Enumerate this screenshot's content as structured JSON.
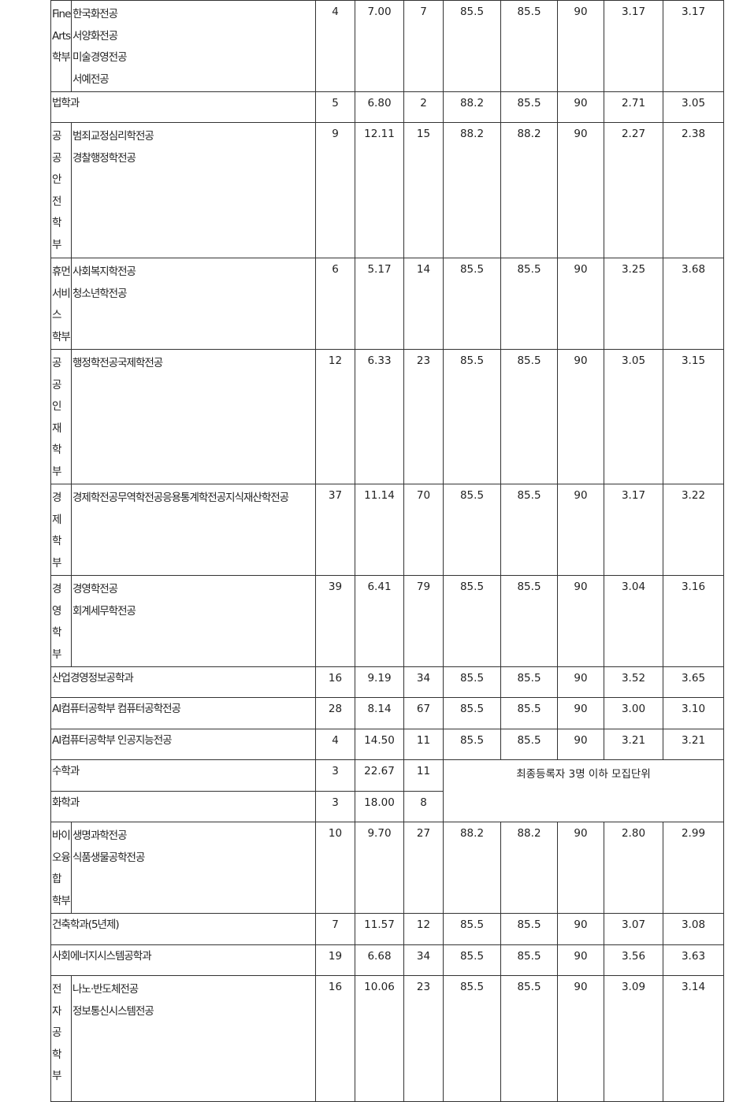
{
  "rows": [
    {
      "group": "Fine\nArts\n학부",
      "majors": "한국화전공\n서양화전공\n미술경영전공\n서예전공",
      "v": [
        "4",
        "7.00",
        "7",
        "85.5",
        "85.5",
        "90",
        "3.17",
        "3.17"
      ]
    },
    {
      "dept": "법학과",
      "v": [
        "5",
        "6.80",
        "2",
        "88.2",
        "85.5",
        "90",
        "2.71",
        "3.05"
      ]
    },
    {
      "group": "공\n공\n안\n전\n학\n부",
      "majors": "범죄교정심리학전공\n경찰행정학전공",
      "v": [
        "9",
        "12.11",
        "15",
        "88.2",
        "88.2",
        "90",
        "2.27",
        "2.38"
      ]
    },
    {
      "group": "휴먼\n서비\n스\n학부",
      "majors": "사회복지학전공\n청소년학전공",
      "v": [
        "6",
        "5.17",
        "14",
        "85.5",
        "85.5",
        "90",
        "3.25",
        "3.68"
      ]
    },
    {
      "group": "공\n공\n인\n재\n학\n부",
      "majors": "행정학전공국제학전공",
      "v": [
        "12",
        "6.33",
        "23",
        "85.5",
        "85.5",
        "90",
        "3.05",
        "3.15"
      ]
    },
    {
      "group": "경\n제\n학\n부",
      "majors": "경제학전공무역학전공응용통계학전공지식재산학전공",
      "v": [
        "37",
        "11.14",
        "70",
        "85.5",
        "85.5",
        "90",
        "3.17",
        "3.22"
      ]
    },
    {
      "group": "경\n영\n학\n부",
      "majors": "경영학전공\n회계세무학전공",
      "v": [
        "39",
        "6.41",
        "79",
        "85.5",
        "85.5",
        "90",
        "3.04",
        "3.16"
      ]
    },
    {
      "dept": "산업경영정보공학과",
      "v": [
        "16",
        "9.19",
        "34",
        "85.5",
        "85.5",
        "90",
        "3.52",
        "3.65"
      ]
    },
    {
      "dept": "AI컴퓨터공학부 컴퓨터공학전공",
      "v": [
        "28",
        "8.14",
        "67",
        "85.5",
        "85.5",
        "90",
        "3.00",
        "3.10"
      ]
    },
    {
      "dept": "AI컴퓨터공학부 인공지능전공",
      "v": [
        "4",
        "14.50",
        "11",
        "85.5",
        "85.5",
        "90",
        "3.21",
        "3.21"
      ]
    },
    {
      "dept": "수학과",
      "v": [
        "3",
        "22.67",
        "11"
      ]
    },
    {
      "dept": "화학과",
      "v": [
        "3",
        "18.00",
        "8"
      ]
    },
    {
      "group": "바이\n오융\n합\n학부",
      "majors": "생명과학전공\n식품생물공학전공",
      "v": [
        "10",
        "9.70",
        "27",
        "88.2",
        "88.2",
        "90",
        "2.80",
        "2.99"
      ]
    },
    {
      "dept": "건축학과(5년제)",
      "v": [
        "7",
        "11.57",
        "12",
        "85.5",
        "85.5",
        "90",
        "3.07",
        "3.08"
      ]
    },
    {
      "dept": "사회에너지시스템공학과",
      "v": [
        "19",
        "6.68",
        "34",
        "85.5",
        "85.5",
        "90",
        "3.56",
        "3.63"
      ]
    },
    {
      "group": "전\n자\n공\n학\n부",
      "majors": "나노·반도체전공\n정보통신시스템전공",
      "v": [
        "16",
        "10.06",
        "23",
        "85.5",
        "85.5",
        "90",
        "3.09",
        "3.14"
      ]
    }
  ],
  "merged_note": "최종등록자 3명 이하 모집단위"
}
